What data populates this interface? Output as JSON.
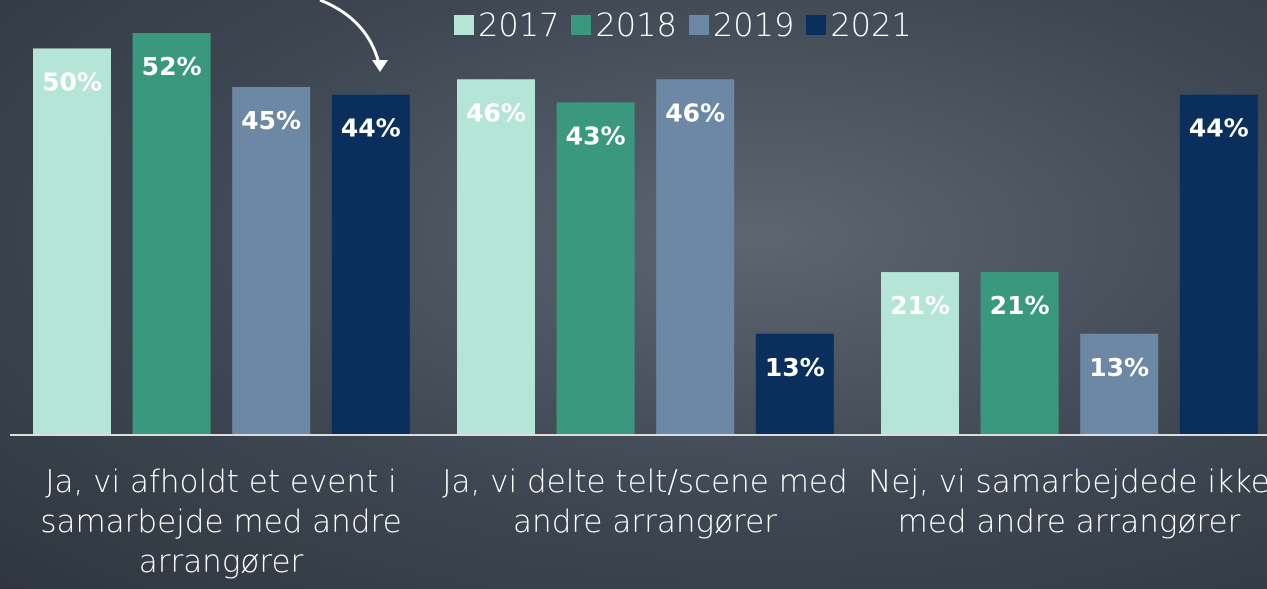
{
  "chart_data": {
    "type": "bar",
    "categories": [
      "Ja, vi afholdt et event i samarbejde med andre arrangører",
      "Ja, vi delte telt/scene med andre arrangører",
      "Nej, vi samarbejdede ikke med andre arrangører"
    ],
    "series": [
      {
        "name": "2017",
        "color": "#b5e5d7",
        "values": [
          50,
          46,
          21
        ],
        "value_labels": [
          "50%",
          "46%",
          "21%"
        ]
      },
      {
        "name": "2018",
        "color": "#3a987e",
        "values": [
          52,
          43,
          21
        ],
        "value_labels": [
          "52%",
          "43%",
          "21%"
        ]
      },
      {
        "name": "2019",
        "color": "#6c88a4",
        "values": [
          45,
          46,
          13
        ],
        "value_labels": [
          "45%",
          "46%",
          "13%"
        ]
      },
      {
        "name": "2021",
        "color": "#0b2f5c",
        "values": [
          44,
          13,
          44
        ],
        "value_labels": [
          "44%",
          "13%",
          "44%"
        ]
      }
    ],
    "legend": "top"
  }
}
